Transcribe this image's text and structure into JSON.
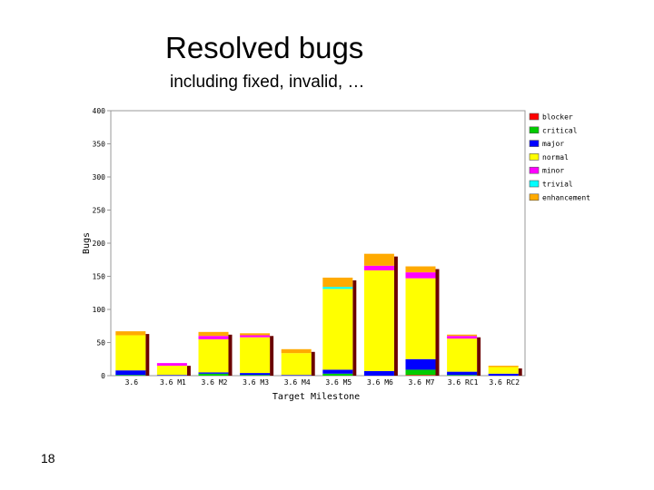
{
  "slide": {
    "title": "Resolved bugs",
    "subtitle": "including fixed, invalid, …",
    "page_number": "18"
  },
  "chart_data": {
    "type": "bar",
    "stacked": true,
    "xlabel": "Target Milestone",
    "ylabel": "Bugs",
    "ylim": [
      0,
      400
    ],
    "yticks": [
      0,
      50,
      100,
      150,
      200,
      250,
      300,
      350,
      400
    ],
    "categories": [
      "3.6",
      "3.6 M1",
      "3.6 M2",
      "3.6 M3",
      "3.6 M4",
      "3.6 M5",
      "3.6 M6",
      "3.6 M7",
      "3.6 RC1",
      "3.6 RC2"
    ],
    "legend_position": "right",
    "series": [
      {
        "name": "blocker",
        "color": "#ff0000",
        "values": [
          0,
          0,
          0,
          0,
          0,
          0,
          0,
          1,
          0,
          0
        ]
      },
      {
        "name": "critical",
        "color": "#00cc00",
        "values": [
          1,
          0,
          3,
          1,
          0,
          3,
          0,
          8,
          1,
          0
        ]
      },
      {
        "name": "major",
        "color": "#0000ff",
        "values": [
          7,
          1,
          2,
          3,
          1,
          6,
          7,
          16,
          5,
          3
        ]
      },
      {
        "name": "normal",
        "color": "#ffff00",
        "values": [
          53,
          14,
          50,
          54,
          33,
          122,
          152,
          122,
          50,
          10
        ]
      },
      {
        "name": "minor",
        "color": "#ff00ff",
        "values": [
          0,
          4,
          5,
          3,
          0,
          0,
          7,
          9,
          4,
          0
        ]
      },
      {
        "name": "trivial",
        "color": "#00ffff",
        "values": [
          0,
          0,
          0,
          0,
          0,
          3,
          0,
          0,
          0,
          0
        ]
      },
      {
        "name": "enhancement",
        "color": "#ffaa00",
        "values": [
          6,
          0,
          6,
          3,
          6,
          14,
          18,
          9,
          2,
          2
        ]
      }
    ]
  }
}
